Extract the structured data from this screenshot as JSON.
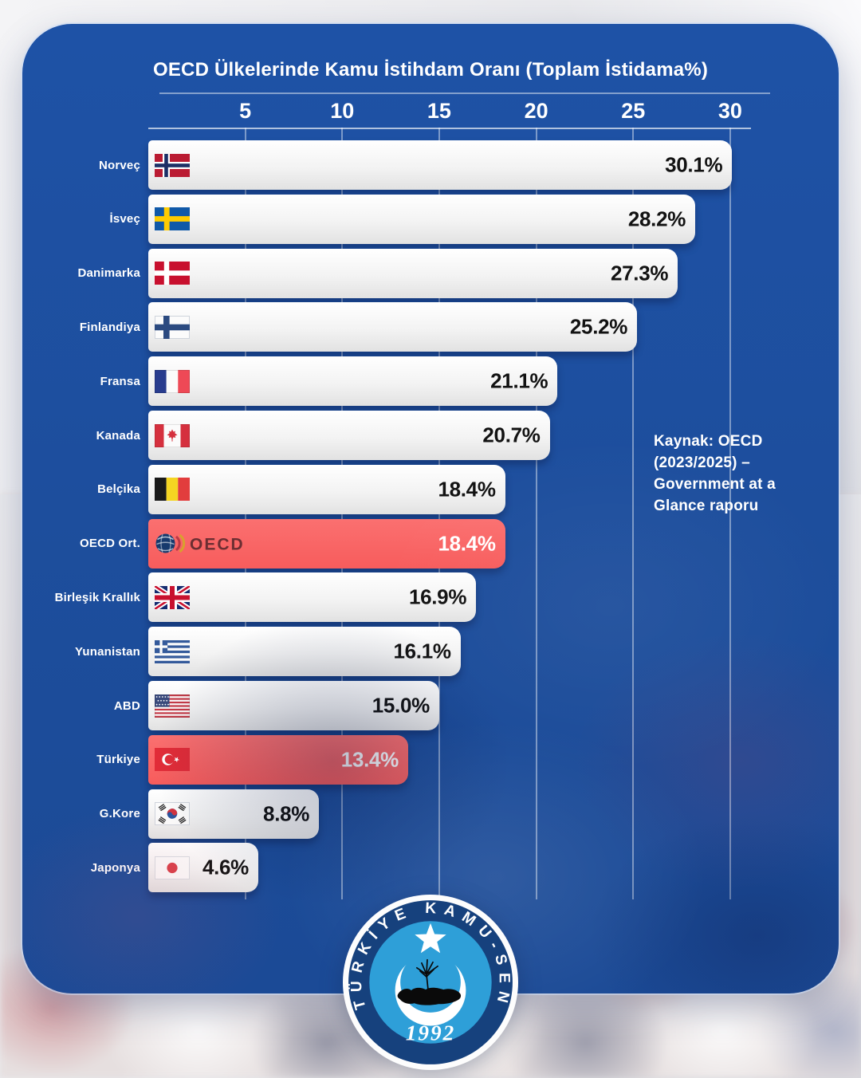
{
  "header": {
    "title": "OECD Ülkelerinde Kamu İstihdam Oranı (Toplam İstidama%)"
  },
  "source": {
    "lines": [
      "Kaynak: OECD",
      "(2023/2025) –",
      "Government at a",
      "Glance raporu"
    ]
  },
  "logo": {
    "organization": "TÜRKİYE KAMU-SEN",
    "year": "1992"
  },
  "chart_data": {
    "type": "bar",
    "orientation": "horizontal",
    "title": "OECD Ülkelerinde Kamu İstihdam Oranı (Toplam İstidama%)",
    "xlim": [
      0,
      30
    ],
    "x_ticks": [
      5,
      10,
      15,
      20,
      25,
      30
    ],
    "grid": true,
    "colors": {
      "card_background": "#1d4e9d",
      "bar": "#f3f3f3",
      "highlight_bar": "#f86363",
      "value_text": "#121212",
      "highlight_value_text": "#ffffff",
      "label_text": "#ffffff"
    },
    "rows": [
      {
        "label": "Norveç",
        "value": 30.1,
        "display": "30.1%",
        "flag": "norway",
        "highlighted": false
      },
      {
        "label": "İsveç",
        "value": 28.2,
        "display": "28.2%",
        "flag": "sweden",
        "highlighted": false
      },
      {
        "label": "Danimarka",
        "value": 27.3,
        "display": "27.3%",
        "flag": "denmark",
        "highlighted": false
      },
      {
        "label": "Finlandiya",
        "value": 25.2,
        "display": "25.2%",
        "flag": "finland",
        "highlighted": false
      },
      {
        "label": "Fransa",
        "value": 21.1,
        "display": "21.1%",
        "flag": "france",
        "highlighted": false
      },
      {
        "label": "Kanada",
        "value": 20.7,
        "display": "20.7%",
        "flag": "canada",
        "highlighted": false
      },
      {
        "label": "Belçika",
        "value": 18.4,
        "display": "18.4%",
        "flag": "belgium",
        "highlighted": false
      },
      {
        "label": "OECD Ort.",
        "value": 18.4,
        "display": "18.4%",
        "flag": "oecd",
        "highlighted": true
      },
      {
        "label": "Birleşik Krallık",
        "value": 16.9,
        "display": "16.9%",
        "flag": "uk",
        "highlighted": false
      },
      {
        "label": "Yunanistan",
        "value": 16.1,
        "display": "16.1%",
        "flag": "greece",
        "highlighted": false
      },
      {
        "label": "ABD",
        "value": 15.0,
        "display": "15.0%",
        "flag": "usa",
        "highlighted": false
      },
      {
        "label": "Türkiye",
        "value": 13.4,
        "display": "13.4%",
        "flag": "turkey",
        "highlighted": true
      },
      {
        "label": "G.Kore",
        "value": 8.8,
        "display": "8.8%",
        "flag": "south-korea",
        "highlighted": false
      },
      {
        "label": "Japonya",
        "value": 4.6,
        "display": "4.6%",
        "flag": "japan",
        "highlighted": false
      }
    ]
  }
}
